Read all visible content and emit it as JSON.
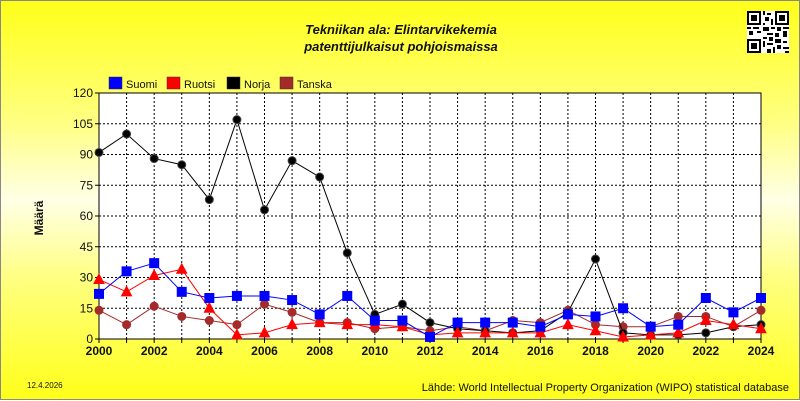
{
  "title_line1": "Tekniikan ala: Elintarvikekemia",
  "title_line2": "patenttijulkaisut pohjoismaissa",
  "footer": {
    "date": "12.4.2026",
    "source": "Lähde: World Intellectual Property Organization (WIPO) statistical database"
  },
  "chart_data": {
    "type": "line",
    "ylabel": "Määrä",
    "xlabel": "",
    "ylim": [
      0,
      120
    ],
    "yticks": [
      0,
      15,
      30,
      45,
      60,
      75,
      90,
      105,
      120
    ],
    "xlim": [
      2000,
      2024
    ],
    "xticks": [
      2000,
      2002,
      2004,
      2006,
      2008,
      2010,
      2012,
      2014,
      2016,
      2018,
      2020,
      2022,
      2024
    ],
    "grid": true,
    "legend": "top-left",
    "x": [
      2000,
      2001,
      2002,
      2003,
      2004,
      2005,
      2006,
      2007,
      2008,
      2009,
      2010,
      2011,
      2012,
      2013,
      2014,
      2015,
      2016,
      2017,
      2018,
      2019,
      2020,
      2021,
      2022,
      2023,
      2024
    ],
    "series": [
      {
        "name": "Suomi",
        "color": "#0000ff",
        "marker": "square",
        "values": [
          22,
          33,
          37,
          23,
          20,
          21,
          21,
          19,
          12,
          21,
          9,
          9,
          1,
          8,
          8,
          8,
          6,
          12,
          11,
          15,
          6,
          7,
          20,
          13,
          20
        ]
      },
      {
        "name": "Ruotsi",
        "color": "#ff0000",
        "marker": "triangle",
        "values": [
          29,
          23,
          31,
          34,
          15,
          2,
          3,
          7,
          8,
          7,
          7,
          6,
          2,
          3,
          3,
          3,
          3,
          7,
          4,
          1,
          2,
          3,
          9,
          7,
          5
        ]
      },
      {
        "name": "Norja",
        "color": "#000000",
        "marker": "circle",
        "values": [
          91,
          100,
          88,
          85,
          68,
          107,
          63,
          87,
          79,
          42,
          12,
          17,
          8,
          5,
          4,
          3,
          4,
          13,
          39,
          3,
          2,
          2,
          3,
          6,
          7
        ]
      },
      {
        "name": "Tanska",
        "color": "#a52a2a",
        "marker": "circle",
        "values": [
          14,
          7,
          16,
          11,
          9,
          7,
          17,
          13,
          8,
          8,
          5,
          6,
          4,
          6,
          4,
          9,
          8,
          14,
          7,
          6,
          6,
          11,
          11,
          6,
          14
        ]
      }
    ]
  }
}
